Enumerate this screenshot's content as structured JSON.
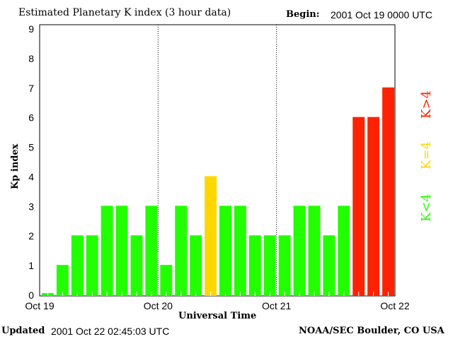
{
  "chart_data": {
    "type": "bar",
    "title": "Estimated Planetary K index (3 hour data)",
    "begin_label": "Begin:",
    "begin_value": "2001 Oct 19 0000 UTC",
    "xlabel": "Universal Time",
    "ylabel": "Kp index",
    "ylim": [
      0,
      9
    ],
    "yticks": [
      "0",
      "1",
      "2",
      "3",
      "4",
      "5",
      "6",
      "7",
      "8",
      "9"
    ],
    "xticks": [
      "Oct 19",
      "Oct 20",
      "Oct 21",
      "Oct 22"
    ],
    "values": [
      0,
      1,
      2,
      2,
      3,
      3,
      2,
      3,
      1,
      3,
      2,
      4,
      3,
      3,
      2,
      2,
      2,
      3,
      3,
      2,
      3,
      6,
      6,
      7
    ],
    "colors": {
      "low": "#22ff00",
      "equal": "#ffd700",
      "high": "#ff2200"
    },
    "legend": {
      "low": "K<4",
      "equal": "K=4",
      "high": "K>4"
    },
    "grid": "dotted vertical day separators"
  },
  "footer": {
    "updated_label": "Updated",
    "updated_value": "2001 Oct 22 02:45:03 UTC",
    "source": "NOAA/SEC Boulder, CO USA"
  }
}
